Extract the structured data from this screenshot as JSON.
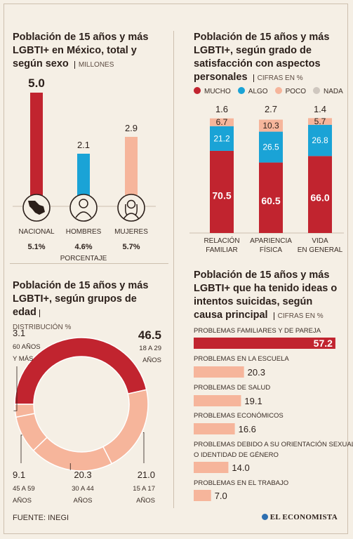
{
  "colors": {
    "red": "#c1242f",
    "blue": "#1aa3d6",
    "peach": "#f6b59b",
    "gray": "#cfc7bf",
    "text": "#2b1f1a"
  },
  "footer": {
    "source": "FUENTE: INEGI",
    "brand": "EL ECONOMISTA"
  },
  "chart_data": [
    {
      "type": "bar",
      "title": "Población de 15 años y más LGBTI+ en México, total y según sexo",
      "unit": "MILLONES",
      "categories": [
        "NACIONAL",
        "HOMBRES",
        "MUJERES"
      ],
      "values": [
        5.0,
        2.1,
        2.9
      ],
      "value_labels": [
        "5.0",
        "2.1",
        "2.9"
      ],
      "percentages": [
        "5.1%",
        "4.6%",
        "5.7%"
      ],
      "percent_label": "PORCENTAJE",
      "icons": [
        "mexico-map-icon",
        "man-icon",
        "woman-icon"
      ],
      "colors": [
        "#c1242f",
        "#1aa3d6",
        "#f6b59b"
      ]
    },
    {
      "type": "bar",
      "stacked": true,
      "title": "Población de 15 años y más LGBTI+, según grado de satisfacción con aspectos personales",
      "unit": "CIFRAS EN %",
      "categories": [
        "RELACIÓN FAMILIAR",
        "APARIENCIA FÍSICA",
        "VIDA EN GENERAL"
      ],
      "series": [
        {
          "name": "MUCHO",
          "values": [
            70.5,
            60.5,
            66.0
          ],
          "labels": [
            "70.5",
            "60.5",
            "66.0"
          ],
          "color": "#c1242f"
        },
        {
          "name": "ALGO",
          "values": [
            21.2,
            26.5,
            26.8
          ],
          "labels": [
            "21.2",
            "26.5",
            "26.8"
          ],
          "color": "#1aa3d6"
        },
        {
          "name": "POCO",
          "values": [
            6.7,
            10.3,
            5.7
          ],
          "labels": [
            "6.7",
            "10.3",
            "5.7"
          ],
          "color": "#f6b59b"
        },
        {
          "name": "NADA",
          "values": [
            1.6,
            2.7,
            1.4
          ],
          "labels": [
            "1.6",
            "2.7",
            "1.4"
          ],
          "color": "#cfc7bf"
        }
      ]
    },
    {
      "type": "pie",
      "donut": true,
      "title": "Población de 15 años y más LGBTI+, según grupos de edad",
      "unit": "DISTRIBUCIÓN %",
      "slices": [
        {
          "label": "18 A 29 AÑOS",
          "value": 46.5,
          "text": "46.5",
          "color": "#c1242f"
        },
        {
          "label": "15 A 17 AÑOS",
          "value": 21.0,
          "text": "21.0",
          "color": "#f6b59b"
        },
        {
          "label": "30 A 44 AÑOS",
          "value": 20.3,
          "text": "20.3",
          "color": "#f6b59b"
        },
        {
          "label": "45 A 59 AÑOS",
          "value": 9.1,
          "text": "9.1",
          "color": "#f6b59b"
        },
        {
          "label": "60 AÑOS Y MÁS",
          "value": 3.1,
          "text": "3.1",
          "color": "#f6b59b"
        }
      ]
    },
    {
      "type": "bar",
      "orientation": "horizontal",
      "title": "Población de 15 años y más LGBTI+ que ha tenido ideas o intentos suicidas, según causa principal",
      "unit": "CIFRAS EN %",
      "categories": [
        "PROBLEMAS FAMILIARES Y DE PAREJA",
        "PROBLEMAS EN LA ESCUELA",
        "PROBLEMAS DE SALUD",
        "PROBLEMAS ECONÓMICOS",
        "PROBLEMAS DEBIDO A SU ORIENTACIÓN SEXUAL O IDENTIDAD DE GÉNERO",
        "PROBLEMAS EN EL TRABAJO"
      ],
      "values": [
        57.2,
        20.3,
        19.1,
        16.6,
        14.0,
        7.0
      ],
      "value_labels": [
        "57.2",
        "20.3",
        "19.1",
        "16.6",
        "14.0",
        "7.0"
      ],
      "colors": [
        "#c1242f",
        "#f6b59b",
        "#f6b59b",
        "#f6b59b",
        "#f6b59b",
        "#f6b59b"
      ]
    }
  ]
}
